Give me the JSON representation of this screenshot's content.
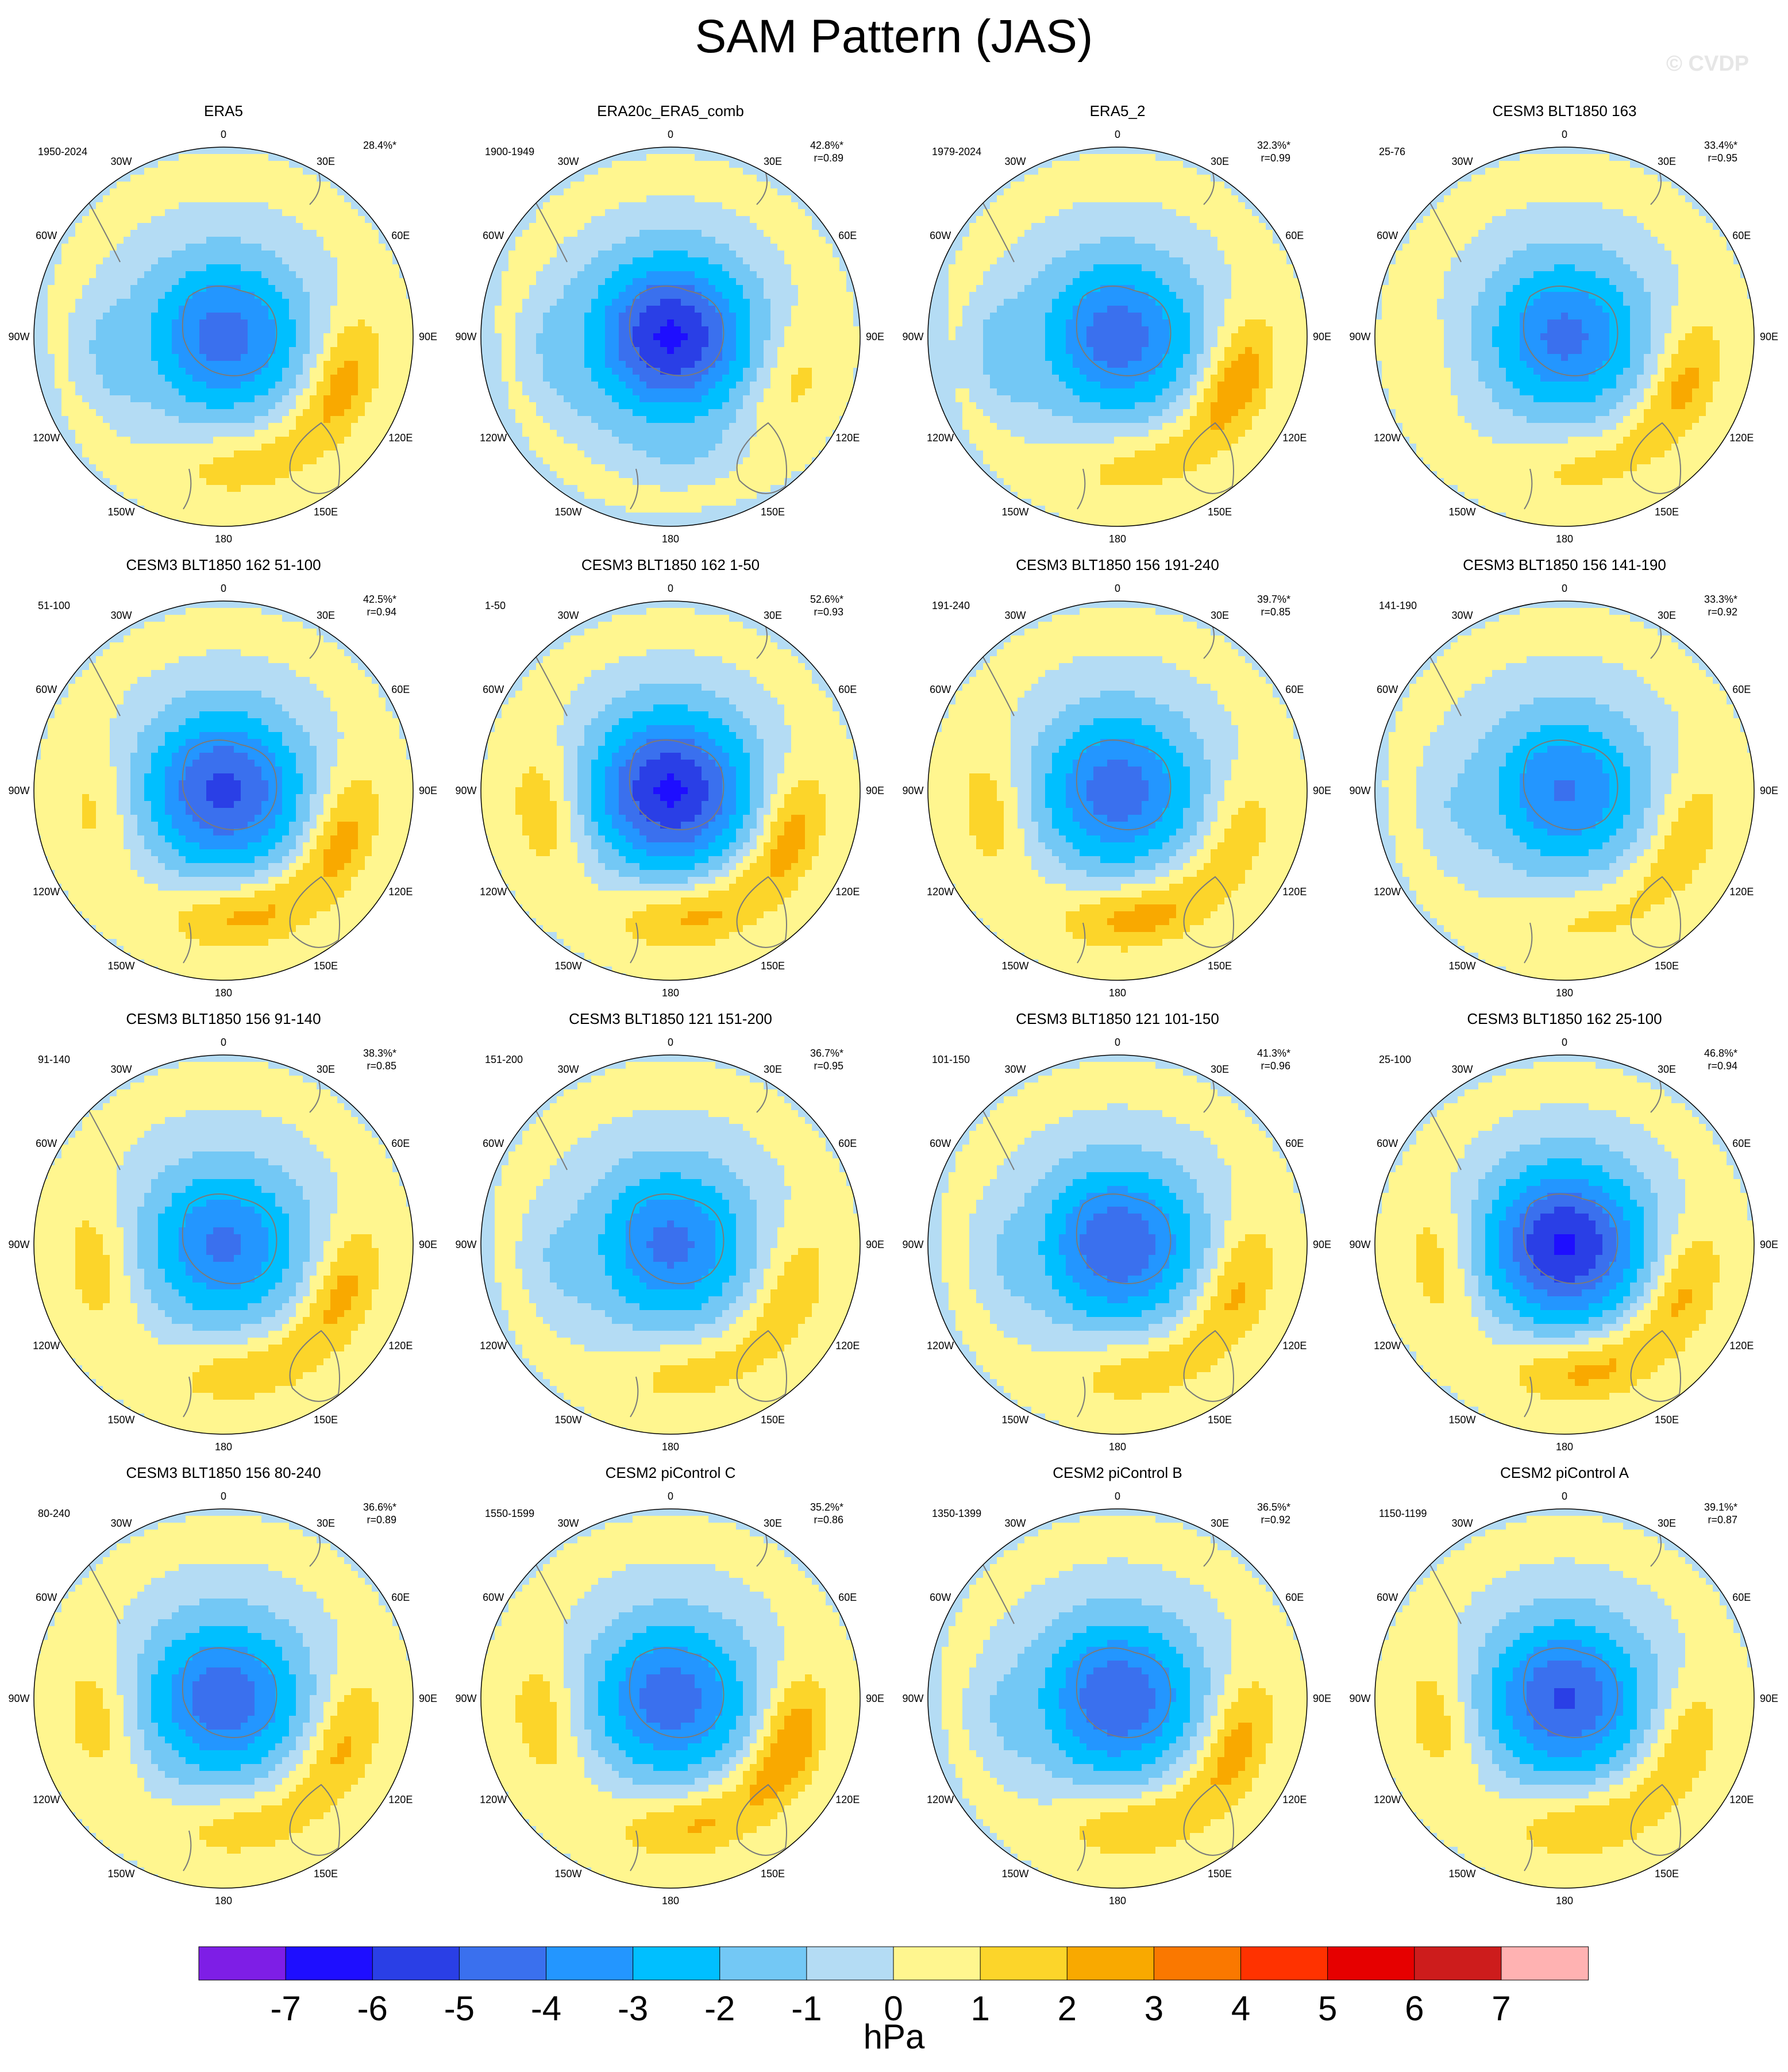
{
  "title": "SAM Pattern (JAS)",
  "watermark": "© CVDP",
  "colors": {
    "levels": [
      "#7e1ee6",
      "#1e0eff",
      "#2a3fe6",
      "#3a70ee",
      "#2396ff",
      "#00bfff",
      "#73c8f5",
      "#b4dcf4",
      "#fff68f",
      "#fcd52a",
      "#f9a900",
      "#fa7800",
      "#ff3200",
      "#e60000",
      "#cd1c1c",
      "#ffb2b2"
    ],
    "land_outline": "#7a7a7a",
    "map_border": "#000000"
  },
  "longitude_labels": [
    "0",
    "30E",
    "60E",
    "90E",
    "120E",
    "150E",
    "180",
    "150W",
    "120W",
    "90W",
    "60W",
    "30W"
  ],
  "panels": [
    {
      "title": "ERA5",
      "period": "1950-2024",
      "pct": "28.4%*",
      "r": "",
      "center": -4.5,
      "east": 2.6,
      "west": -0.9,
      "south": 1.6
    },
    {
      "title": "ERA20c_ERA5_comb",
      "period": "1900-1949",
      "pct": "42.8%*",
      "r": "r=0.89",
      "center": -6.2,
      "east": 1.4,
      "west": -0.8,
      "south": -0.6
    },
    {
      "title": "ERA5_2",
      "period": "1979-2024",
      "pct": "32.3%*",
      "r": "r=0.99",
      "center": -4.6,
      "east": 2.9,
      "west": -1.1,
      "south": 1.5
    },
    {
      "title": "CESM3 BLT1850 163",
      "period": "25-76",
      "pct": "33.4%*",
      "r": "r=0.95",
      "center": -4.3,
      "east": 2.4,
      "west": 0.4,
      "south": 1.3
    },
    {
      "title": "CESM3 BLT1850 162 51-100",
      "period": "51-100",
      "pct": "42.5%*",
      "r": "r=0.94",
      "center": -5.3,
      "east": 2.5,
      "west": 1.3,
      "south": 2.4
    },
    {
      "title": "CESM3 BLT1850 162 1-50",
      "period": "1-50",
      "pct": "52.6%*",
      "r": "r=0.93",
      "center": -6.2,
      "east": 2.6,
      "west": 1.8,
      "south": 2.4
    },
    {
      "title": "CESM3 BLT1850 156 191-240",
      "period": "191-240",
      "pct": "39.7%*",
      "r": "r=0.85",
      "center": -4.6,
      "east": 1.6,
      "west": 1.6,
      "south": 2.6
    },
    {
      "title": "CESM3 BLT1850 156 141-190",
      "period": "141-190",
      "pct": "33.3%*",
      "r": "r=0.92",
      "center": -4.1,
      "east": 1.8,
      "west": -0.6,
      "south": 1.2
    },
    {
      "title": "CESM3 BLT1850 156 91-140",
      "period": "91-140",
      "pct": "38.3%*",
      "r": "r=0.85",
      "center": -4.2,
      "east": 2.4,
      "west": 1.6,
      "south": 1.8
    },
    {
      "title": "CESM3 BLT1850 121 151-200",
      "period": "151-200",
      "pct": "36.7%*",
      "r": "r=0.95",
      "center": -4.3,
      "east": 1.8,
      "west": -0.7,
      "south": 1.5
    },
    {
      "title": "CESM3 BLT1850 121 101-150",
      "period": "101-150",
      "pct": "41.3%*",
      "r": "r=0.96",
      "center": -4.9,
      "east": 2.3,
      "west": -0.6,
      "south": 1.7
    },
    {
      "title": "CESM3 BLT1850 162 25-100",
      "period": "25-100",
      "pct": "46.8%*",
      "r": "r=0.94",
      "center": -6.1,
      "east": 2.3,
      "west": 1.6,
      "south": 2.5
    },
    {
      "title": "CESM3 BLT1850 156 80-240",
      "period": "80-240",
      "pct": "36.6%*",
      "r": "r=0.89",
      "center": -4.7,
      "east": 2.3,
      "west": 1.6,
      "south": 1.6
    },
    {
      "title": "CESM2 piControl C",
      "period": "1550-1599",
      "pct": "35.2%*",
      "r": "r=0.86",
      "center": -4.6,
      "east": 3.1,
      "west": 1.7,
      "south": 2.2
    },
    {
      "title": "CESM2 piControl B",
      "period": "1350-1399",
      "pct": "36.5%*",
      "r": "r=0.92",
      "center": -4.9,
      "east": 2.6,
      "west": -0.7,
      "south": 2.1
    },
    {
      "title": "CESM2 piControl A",
      "period": "1150-1199",
      "pct": "39.1%*",
      "r": "r=0.87",
      "center": -5.1,
      "east": 1.8,
      "west": 1.6,
      "south": 2.1
    }
  ],
  "colorbar": {
    "labels": [
      "-7",
      "-6",
      "-5",
      "-4",
      "-3",
      "-2",
      "-1",
      "0",
      "1",
      "2",
      "3",
      "4",
      "5",
      "6",
      "7"
    ],
    "units": "hPa"
  }
}
